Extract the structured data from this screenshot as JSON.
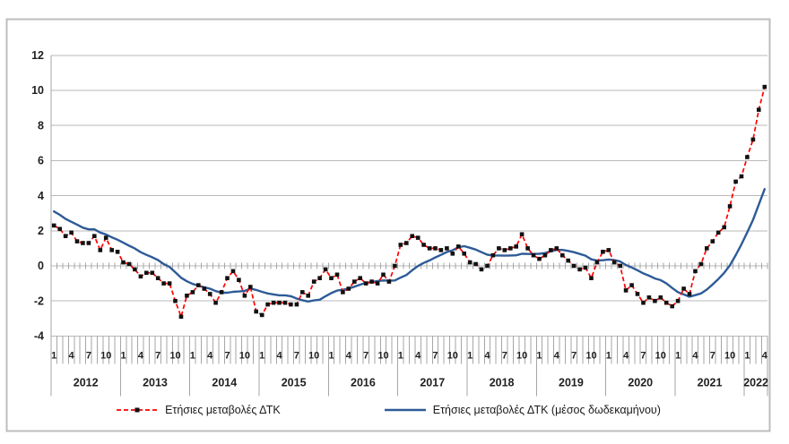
{
  "legend": {
    "items": [
      {
        "label": "Ετήσιες μεταβολές ΔΤΚ",
        "swatch": "red-dashed-line-with-black-square-marker"
      },
      {
        "label": "Ετήσιες μεταβολές ΔΤΚ (μέσος δωδεκαμήνου)",
        "swatch": "blue-solid-line"
      }
    ]
  },
  "chart_data": {
    "type": "line",
    "title": "",
    "xlabel": "",
    "ylabel": "",
    "ylim": [
      -4,
      12
    ],
    "y_ticks": [
      12,
      10,
      8,
      6,
      4,
      2,
      0,
      -2,
      -4
    ],
    "grid": "horizontal",
    "legend_position": "bottom",
    "x_axis": {
      "unit": "month",
      "month_labels_shown": [
        "1",
        "4",
        "7",
        "10"
      ],
      "year_groups": [
        {
          "year": "2012",
          "months": 12
        },
        {
          "year": "2013",
          "months": 12
        },
        {
          "year": "2014",
          "months": 12
        },
        {
          "year": "2015",
          "months": 12
        },
        {
          "year": "2016",
          "months": 12
        },
        {
          "year": "2017",
          "months": 12
        },
        {
          "year": "2018",
          "months": 12
        },
        {
          "year": "2019",
          "months": 12
        },
        {
          "year": "2020",
          "months": 12
        },
        {
          "year": "2021",
          "months": 12
        },
        {
          "year": "2022",
          "months": 4
        }
      ]
    },
    "series": [
      {
        "name": "Ετήσιες μεταβολές ΔΤΚ",
        "color": "#FF0000",
        "line_style": "dashed",
        "marker": "square",
        "marker_color": "#111111",
        "values": [
          2.3,
          2.1,
          1.7,
          1.9,
          1.4,
          1.3,
          1.3,
          1.7,
          0.9,
          1.6,
          0.9,
          0.8,
          0.2,
          0.1,
          -0.2,
          -0.6,
          -0.4,
          -0.4,
          -0.7,
          -1.0,
          -1.0,
          -2.0,
          -2.9,
          -1.7,
          -1.5,
          -1.1,
          -1.3,
          -1.6,
          -2.1,
          -1.5,
          -0.7,
          -0.3,
          -0.8,
          -1.7,
          -1.2,
          -2.6,
          -2.8,
          -2.2,
          -2.1,
          -2.1,
          -2.1,
          -2.2,
          -2.2,
          -1.5,
          -1.7,
          -0.9,
          -0.7,
          -0.2,
          -0.7,
          -0.5,
          -1.5,
          -1.3,
          -0.9,
          -0.7,
          -1.0,
          -0.9,
          -1.0,
          -0.5,
          -0.9,
          0.0,
          1.2,
          1.3,
          1.7,
          1.6,
          1.2,
          1.0,
          1.0,
          0.9,
          1.0,
          0.7,
          1.1,
          0.7,
          0.2,
          0.1,
          -0.2,
          0.0,
          0.6,
          1.0,
          0.9,
          1.0,
          1.1,
          1.8,
          1.0,
          0.6,
          0.4,
          0.6,
          0.9,
          1.0,
          0.6,
          0.3,
          0.0,
          -0.2,
          -0.1,
          -0.7,
          0.2,
          0.8,
          0.9,
          0.2,
          0.0,
          -1.4,
          -1.1,
          -1.6,
          -2.1,
          -1.8,
          -2.0,
          -1.8,
          -2.1,
          -2.3,
          -2.0,
          -1.3,
          -1.6,
          -0.3,
          0.1,
          1.0,
          1.4,
          1.9,
          2.2,
          3.4,
          4.8,
          5.1,
          6.2,
          7.2,
          8.9,
          10.2
        ]
      },
      {
        "name": "Ετήσιες μεταβολές ΔΤΚ (μέσος δωδεκαμήνου)",
        "color": "#2E5B97",
        "line_style": "solid",
        "marker": "none",
        "values": [
          3.1,
          2.91,
          2.68,
          2.51,
          2.35,
          2.18,
          2.08,
          2.08,
          1.9,
          1.79,
          1.63,
          1.49,
          1.32,
          1.15,
          0.99,
          0.78,
          0.63,
          0.49,
          0.33,
          0.1,
          -0.06,
          -0.36,
          -0.68,
          -0.88,
          -1.03,
          -1.13,
          -1.22,
          -1.3,
          -1.44,
          -1.53,
          -1.53,
          -1.48,
          -1.46,
          -1.43,
          -1.29,
          -1.37,
          -1.48,
          -1.57,
          -1.63,
          -1.68,
          -1.68,
          -1.73,
          -1.86,
          -1.96,
          -2.03,
          -1.97,
          -1.93,
          -1.73,
          -1.55,
          -1.41,
          -1.36,
          -1.29,
          -1.19,
          -1.07,
          -0.97,
          -0.92,
          -0.86,
          -0.83,
          -0.84,
          -0.83,
          -0.67,
          -0.52,
          -0.25,
          -0.01,
          0.17,
          0.31,
          0.48,
          0.63,
          0.79,
          0.89,
          1.06,
          1.12,
          1.03,
          0.93,
          0.78,
          0.64,
          0.59,
          0.59,
          0.58,
          0.59,
          0.6,
          0.69,
          0.68,
          0.68,
          0.69,
          0.73,
          0.83,
          0.91,
          0.91,
          0.85,
          0.78,
          0.68,
          0.58,
          0.37,
          0.3,
          0.32,
          0.36,
          0.33,
          0.25,
          0.05,
          -0.09,
          -0.25,
          -0.43,
          -0.56,
          -0.72,
          -0.81,
          -1.0,
          -1.26,
          -1.5,
          -1.63,
          -1.76,
          -1.67,
          -1.57,
          -1.35,
          -1.06,
          -0.75,
          -0.4,
          0.03,
          0.61,
          1.23,
          1.91,
          2.62,
          3.49,
          4.37
        ]
      }
    ]
  },
  "colors": {
    "grid": "#B9B9B9",
    "axis": "#A6A6A6",
    "frame": "#BDBDBD",
    "text": "#1F1F1F",
    "background": "#FFFFFF"
  }
}
